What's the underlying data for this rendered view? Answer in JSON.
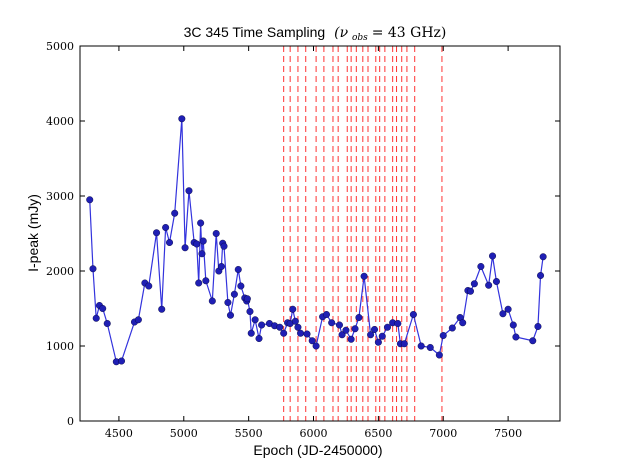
{
  "chart_data": {
    "type": "line",
    "title": "3C 345 Time Sampling",
    "title_math": "(ν",
    "title_sub": "obs",
    "title_eq": " =  43 GHz)",
    "xlabel": "Epoch (JD-2450000)",
    "ylabel": "I-peak (mJy)",
    "xlim": [
      4200,
      7900
    ],
    "ylim": [
      0,
      5000
    ],
    "xticks": [
      {
        "value": 4500,
        "label": "4500"
      },
      {
        "value": 5000,
        "label": "5000"
      },
      {
        "value": 5500,
        "label": "5500"
      },
      {
        "value": 6000,
        "label": "6000"
      },
      {
        "value": 6500,
        "label": "6500"
      },
      {
        "value": 7000,
        "label": "7000"
      },
      {
        "value": 7500,
        "label": "7500"
      }
    ],
    "yticks": [
      {
        "value": 0,
        "label": "0"
      },
      {
        "value": 1000,
        "label": "1000"
      },
      {
        "value": 2000,
        "label": "2000"
      },
      {
        "value": 3000,
        "label": "3000"
      },
      {
        "value": 4000,
        "label": "4000"
      },
      {
        "value": 5000,
        "label": "5000"
      }
    ],
    "grid": false,
    "series": [
      {
        "name": "I-peak",
        "color": "#1f1fb4",
        "line_color": "#3333dd",
        "points": [
          [
            4275,
            2950
          ],
          [
            4300,
            2030
          ],
          [
            4325,
            1370
          ],
          [
            4350,
            1540
          ],
          [
            4375,
            1500
          ],
          [
            4410,
            1300
          ],
          [
            4480,
            790
          ],
          [
            4520,
            800
          ],
          [
            4620,
            1320
          ],
          [
            4650,
            1350
          ],
          [
            4700,
            1840
          ],
          [
            4730,
            1800
          ],
          [
            4790,
            2510
          ],
          [
            4830,
            1490
          ],
          [
            4860,
            2580
          ],
          [
            4890,
            2380
          ],
          [
            4930,
            2770
          ],
          [
            4985,
            4030
          ],
          [
            5010,
            2310
          ],
          [
            5040,
            3070
          ],
          [
            5080,
            2380
          ],
          [
            5100,
            2360
          ],
          [
            5115,
            1840
          ],
          [
            5130,
            2640
          ],
          [
            5140,
            2230
          ],
          [
            5150,
            2400
          ],
          [
            5170,
            1870
          ],
          [
            5220,
            1600
          ],
          [
            5250,
            2500
          ],
          [
            5270,
            2000
          ],
          [
            5290,
            2060
          ],
          [
            5300,
            2370
          ],
          [
            5310,
            2330
          ],
          [
            5340,
            1580
          ],
          [
            5360,
            1410
          ],
          [
            5390,
            1690
          ],
          [
            5420,
            2020
          ],
          [
            5440,
            1800
          ],
          [
            5470,
            1640
          ],
          [
            5485,
            1600
          ],
          [
            5490,
            1630
          ],
          [
            5510,
            1460
          ],
          [
            5520,
            1170
          ],
          [
            5550,
            1350
          ],
          [
            5580,
            1100
          ],
          [
            5600,
            1280
          ],
          [
            5660,
            1300
          ],
          [
            5700,
            1270
          ],
          [
            5740,
            1250
          ],
          [
            5770,
            1170
          ],
          [
            5800,
            1310
          ],
          [
            5820,
            1300
          ],
          [
            5840,
            1490
          ],
          [
            5860,
            1330
          ],
          [
            5880,
            1250
          ],
          [
            5900,
            1170
          ],
          [
            5950,
            1160
          ],
          [
            5990,
            1070
          ],
          [
            6020,
            1000
          ],
          [
            6070,
            1390
          ],
          [
            6100,
            1420
          ],
          [
            6140,
            1310
          ],
          [
            6200,
            1280
          ],
          [
            6220,
            1150
          ],
          [
            6250,
            1210
          ],
          [
            6290,
            1090
          ],
          [
            6320,
            1230
          ],
          [
            6350,
            1380
          ],
          [
            6390,
            1930
          ],
          [
            6440,
            1150
          ],
          [
            6470,
            1220
          ],
          [
            6500,
            1050
          ],
          [
            6530,
            1130
          ],
          [
            6570,
            1250
          ],
          [
            6610,
            1310
          ],
          [
            6650,
            1300
          ],
          [
            6670,
            1030
          ],
          [
            6700,
            1030
          ],
          [
            6770,
            1420
          ],
          [
            6830,
            1000
          ],
          [
            6900,
            980
          ],
          [
            6970,
            880
          ],
          [
            7000,
            1140
          ],
          [
            7070,
            1240
          ],
          [
            7130,
            1380
          ],
          [
            7150,
            1310
          ],
          [
            7190,
            1740
          ],
          [
            7210,
            1730
          ],
          [
            7240,
            1830
          ],
          [
            7290,
            2060
          ],
          [
            7350,
            1810
          ],
          [
            7380,
            2200
          ],
          [
            7410,
            1860
          ],
          [
            7460,
            1430
          ],
          [
            7500,
            1490
          ],
          [
            7540,
            1280
          ],
          [
            7560,
            1120
          ],
          [
            7690,
            1070
          ],
          [
            7730,
            1260
          ],
          [
            7750,
            1940
          ],
          [
            7770,
            2190
          ]
        ]
      }
    ],
    "vlines": {
      "color": "#ff3333",
      "style": "dashed",
      "x": [
        5770,
        5820,
        5880,
        5940,
        6020,
        6080,
        6150,
        6190,
        6260,
        6290,
        6330,
        6380,
        6420,
        6480,
        6510,
        6550,
        6610,
        6640,
        6680,
        6720,
        6780,
        6990
      ]
    }
  }
}
